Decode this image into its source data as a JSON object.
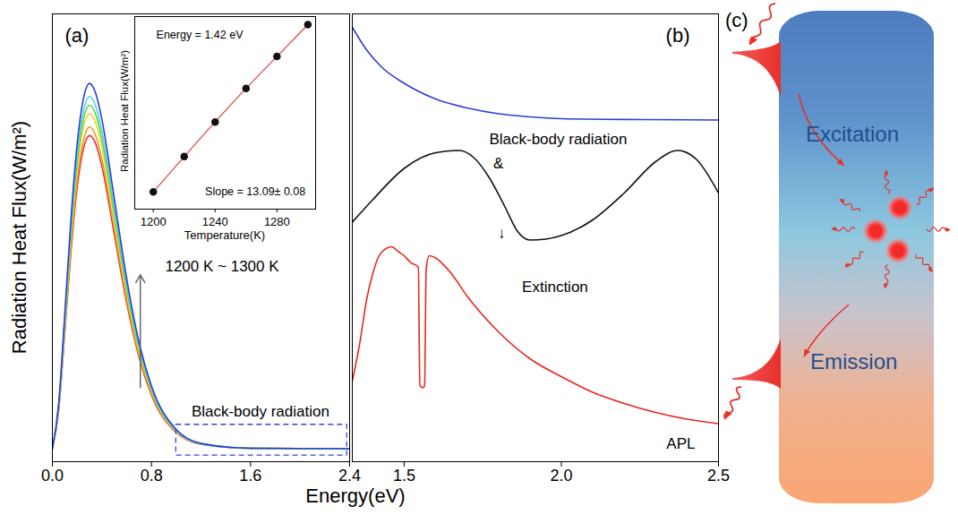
{
  "chart_data": [
    {
      "type": "line",
      "panel_label": "(a)",
      "xlabel": "Energy(eV)",
      "ylabel": "Radiation Heat Flux(W/m²)",
      "x": [
        0,
        0.05,
        0.1,
        0.15,
        0.2,
        0.25,
        0.3,
        0.35,
        0.4,
        0.5,
        0.6,
        0.7,
        0.8,
        1.0,
        1.2,
        1.6,
        2.4
      ],
      "series": [
        {
          "color": "#e8362f",
          "values": [
            0,
            0.086,
            0.265,
            0.452,
            0.6,
            0.689,
            0.72,
            0.701,
            0.649,
            0.492,
            0.335,
            0.21,
            0.123,
            0.037,
            0.01,
            0.001,
            0
          ]
        },
        {
          "color": "#f7941d",
          "values": [
            0,
            0.088,
            0.272,
            0.465,
            0.616,
            0.708,
            0.74,
            0.72,
            0.667,
            0.506,
            0.344,
            0.215,
            0.127,
            0.038,
            0.01,
            0.001,
            0
          ]
        },
        {
          "color": "#e6dc2a",
          "values": [
            0,
            0.092,
            0.283,
            0.484,
            0.641,
            0.737,
            0.77,
            0.749,
            0.694,
            0.527,
            0.358,
            0.224,
            0.132,
            0.04,
            0.011,
            0.001,
            0
          ]
        },
        {
          "color": "#5ed63c",
          "values": [
            0,
            0.094,
            0.291,
            0.496,
            0.658,
            0.756,
            0.79,
            0.769,
            0.712,
            0.54,
            0.367,
            0.23,
            0.135,
            0.041,
            0.011,
            0.001,
            0
          ]
        },
        {
          "color": "#4fd3e6",
          "values": [
            0,
            0.096,
            0.298,
            0.509,
            0.675,
            0.775,
            0.81,
            0.788,
            0.73,
            0.554,
            0.377,
            0.236,
            0.139,
            0.042,
            0.011,
            0.001,
            0
          ]
        },
        {
          "color": "#2a3cd8",
          "values": [
            0,
            0.1,
            0.309,
            0.528,
            0.7,
            0.804,
            0.84,
            0.817,
            0.757,
            0.575,
            0.391,
            0.244,
            0.144,
            0.044,
            0.012,
            0.001,
            0
          ]
        }
      ],
      "xlim": [
        0,
        2.4
      ],
      "xticks": [
        {
          "value": 0,
          "label": "0.0"
        },
        0.8,
        1.6,
        2.4
      ],
      "ylim": [
        -0.03,
        1.0
      ],
      "tick_labels": "x",
      "annotations": [
        {
          "text": "1200 K ~ 1300 K",
          "x": 1.37,
          "y": 0.42
        },
        {
          "text": "Black-body radiation",
          "x": 1.68,
          "y": 0.085
        }
      ],
      "arrows": [
        {
          "x": [
            0.71,
            0.71
          ],
          "y": [
            0.14,
            0.4
          ]
        }
      ],
      "boxes": [
        {
          "x": [
            1.0,
            2.38
          ],
          "y": [
            -0.016,
            0.055
          ]
        }
      ]
    },
    {
      "type": "scatter",
      "xlabel": "Temperature(K)",
      "ylabel": "Radiation Heat Flux(W/m²)",
      "x": [
        1200,
        1220,
        1240,
        1260,
        1280,
        1300
      ],
      "series": [
        {
          "type": "line",
          "color": "#e0403a",
          "line_style": "solid",
          "values": [
            0.49,
            1.5,
            2.49,
            3.45,
            4.36,
            5.27
          ]
        },
        {
          "type": "scatter",
          "color": "#111111",
          "marker": "circle",
          "values": [
            0.49,
            1.5,
            2.49,
            3.45,
            4.36,
            5.27
          ]
        }
      ],
      "xlim": [
        1188,
        1305
      ],
      "xticks": [
        1200,
        1240,
        1280
      ],
      "ylim": [
        0,
        5.5
      ],
      "tick_labels": "x",
      "annotations": [
        {
          "text": "Energy = 1.42 eV",
          "x": 1230,
          "y": 4.98
        },
        {
          "text": "Slope = 13.09± 0.08",
          "x": 1266,
          "y": 0.5
        }
      ]
    },
    {
      "type": "line",
      "panel_label": "(b)",
      "series": [
        {
          "color": "#2b3fd6",
          "x": [
            1.335,
            1.38,
            1.43,
            1.5,
            1.6,
            1.7,
            1.8,
            1.9,
            2.0,
            2.25,
            2.5
          ],
          "values": [
            0.97,
            0.92,
            0.88,
            0.845,
            0.81,
            0.79,
            0.777,
            0.77,
            0.766,
            0.764,
            0.763
          ]
        },
        {
          "color": "#111111",
          "x": [
            1.335,
            1.4,
            1.5,
            1.6,
            1.675,
            1.72,
            1.77,
            1.82,
            1.86,
            1.9,
            1.95,
            2.0,
            2.1,
            2.2,
            2.3,
            2.37,
            2.43,
            2.5
          ],
          "values": [
            0.535,
            0.585,
            0.655,
            0.69,
            0.695,
            0.68,
            0.635,
            0.57,
            0.515,
            0.495,
            0.497,
            0.505,
            0.54,
            0.6,
            0.67,
            0.695,
            0.675,
            0.6
          ]
        },
        {
          "color": "#e8261c",
          "x": [
            1.335,
            1.36,
            1.38,
            1.4,
            1.42,
            1.44,
            1.46,
            1.48,
            1.5,
            1.52,
            1.545,
            1.55,
            1.56,
            1.565,
            1.57,
            1.58,
            1.6,
            1.65,
            1.7,
            1.8,
            1.9,
            2.0,
            2.1,
            2.2,
            2.3,
            2.4,
            2.5
          ],
          "values": [
            0.18,
            0.27,
            0.36,
            0.42,
            0.46,
            0.475,
            0.48,
            0.47,
            0.46,
            0.445,
            0.435,
            0.17,
            0.165,
            0.17,
            0.43,
            0.46,
            0.455,
            0.42,
            0.37,
            0.29,
            0.23,
            0.19,
            0.155,
            0.13,
            0.11,
            0.095,
            0.085
          ]
        }
      ],
      "xlim": [
        1.335,
        2.5
      ],
      "xticks": [
        1.5,
        {
          "value": 2,
          "label": "2.0"
        },
        2.5
      ],
      "ylim": [
        0,
        1
      ],
      "tick_labels": "x",
      "annotations": [
        {
          "text": "Black-body radiation",
          "x": 1.99,
          "y": 0.72
        },
        {
          "text": "&",
          "x": 1.8,
          "y": 0.665
        },
        {
          "text": "↓",
          "x": 1.81,
          "y": 0.51
        },
        {
          "text": "Extinction",
          "x": 1.98,
          "y": 0.39
        },
        {
          "text": "APL",
          "x": 2.38,
          "y": 0.04
        }
      ]
    }
  ],
  "diagram": {
    "panel_label": "(c)",
    "excitation": "Excitation",
    "emission": "Emission"
  }
}
